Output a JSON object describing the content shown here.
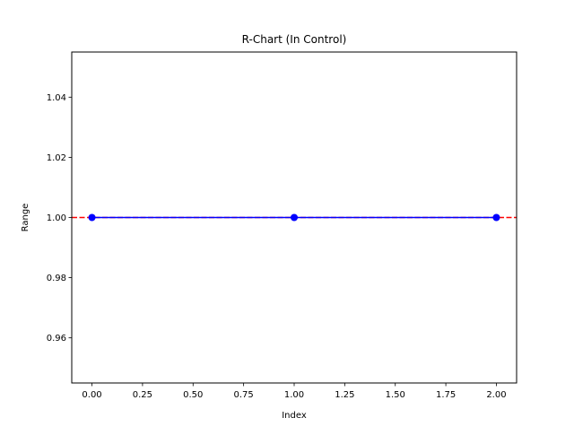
{
  "chart_data": {
    "type": "line",
    "title": "R-Chart (In Control)",
    "xlabel": "Index",
    "ylabel": "Range",
    "x": [
      0,
      1,
      2
    ],
    "series": [
      {
        "values": [
          1.0,
          1.0,
          1.0
        ],
        "color": "#0000ff",
        "marker": "circle"
      }
    ],
    "reference_lines": [
      {
        "y": 1.0,
        "color": "#ff0000",
        "style": "dashed"
      }
    ],
    "xlim": [
      -0.1,
      2.1
    ],
    "ylim": [
      0.945,
      1.055
    ],
    "xticks": [
      0.0,
      0.25,
      0.5,
      0.75,
      1.0,
      1.25,
      1.5,
      1.75,
      2.0
    ],
    "xtick_labels": [
      "0.00",
      "0.25",
      "0.50",
      "0.75",
      "1.00",
      "1.25",
      "1.50",
      "1.75",
      "2.00"
    ],
    "yticks": [
      0.96,
      0.98,
      1.0,
      1.02,
      1.04
    ],
    "ytick_labels": [
      "0.96",
      "0.98",
      "1.00",
      "1.02",
      "1.04"
    ],
    "grid": false,
    "legend": false
  }
}
